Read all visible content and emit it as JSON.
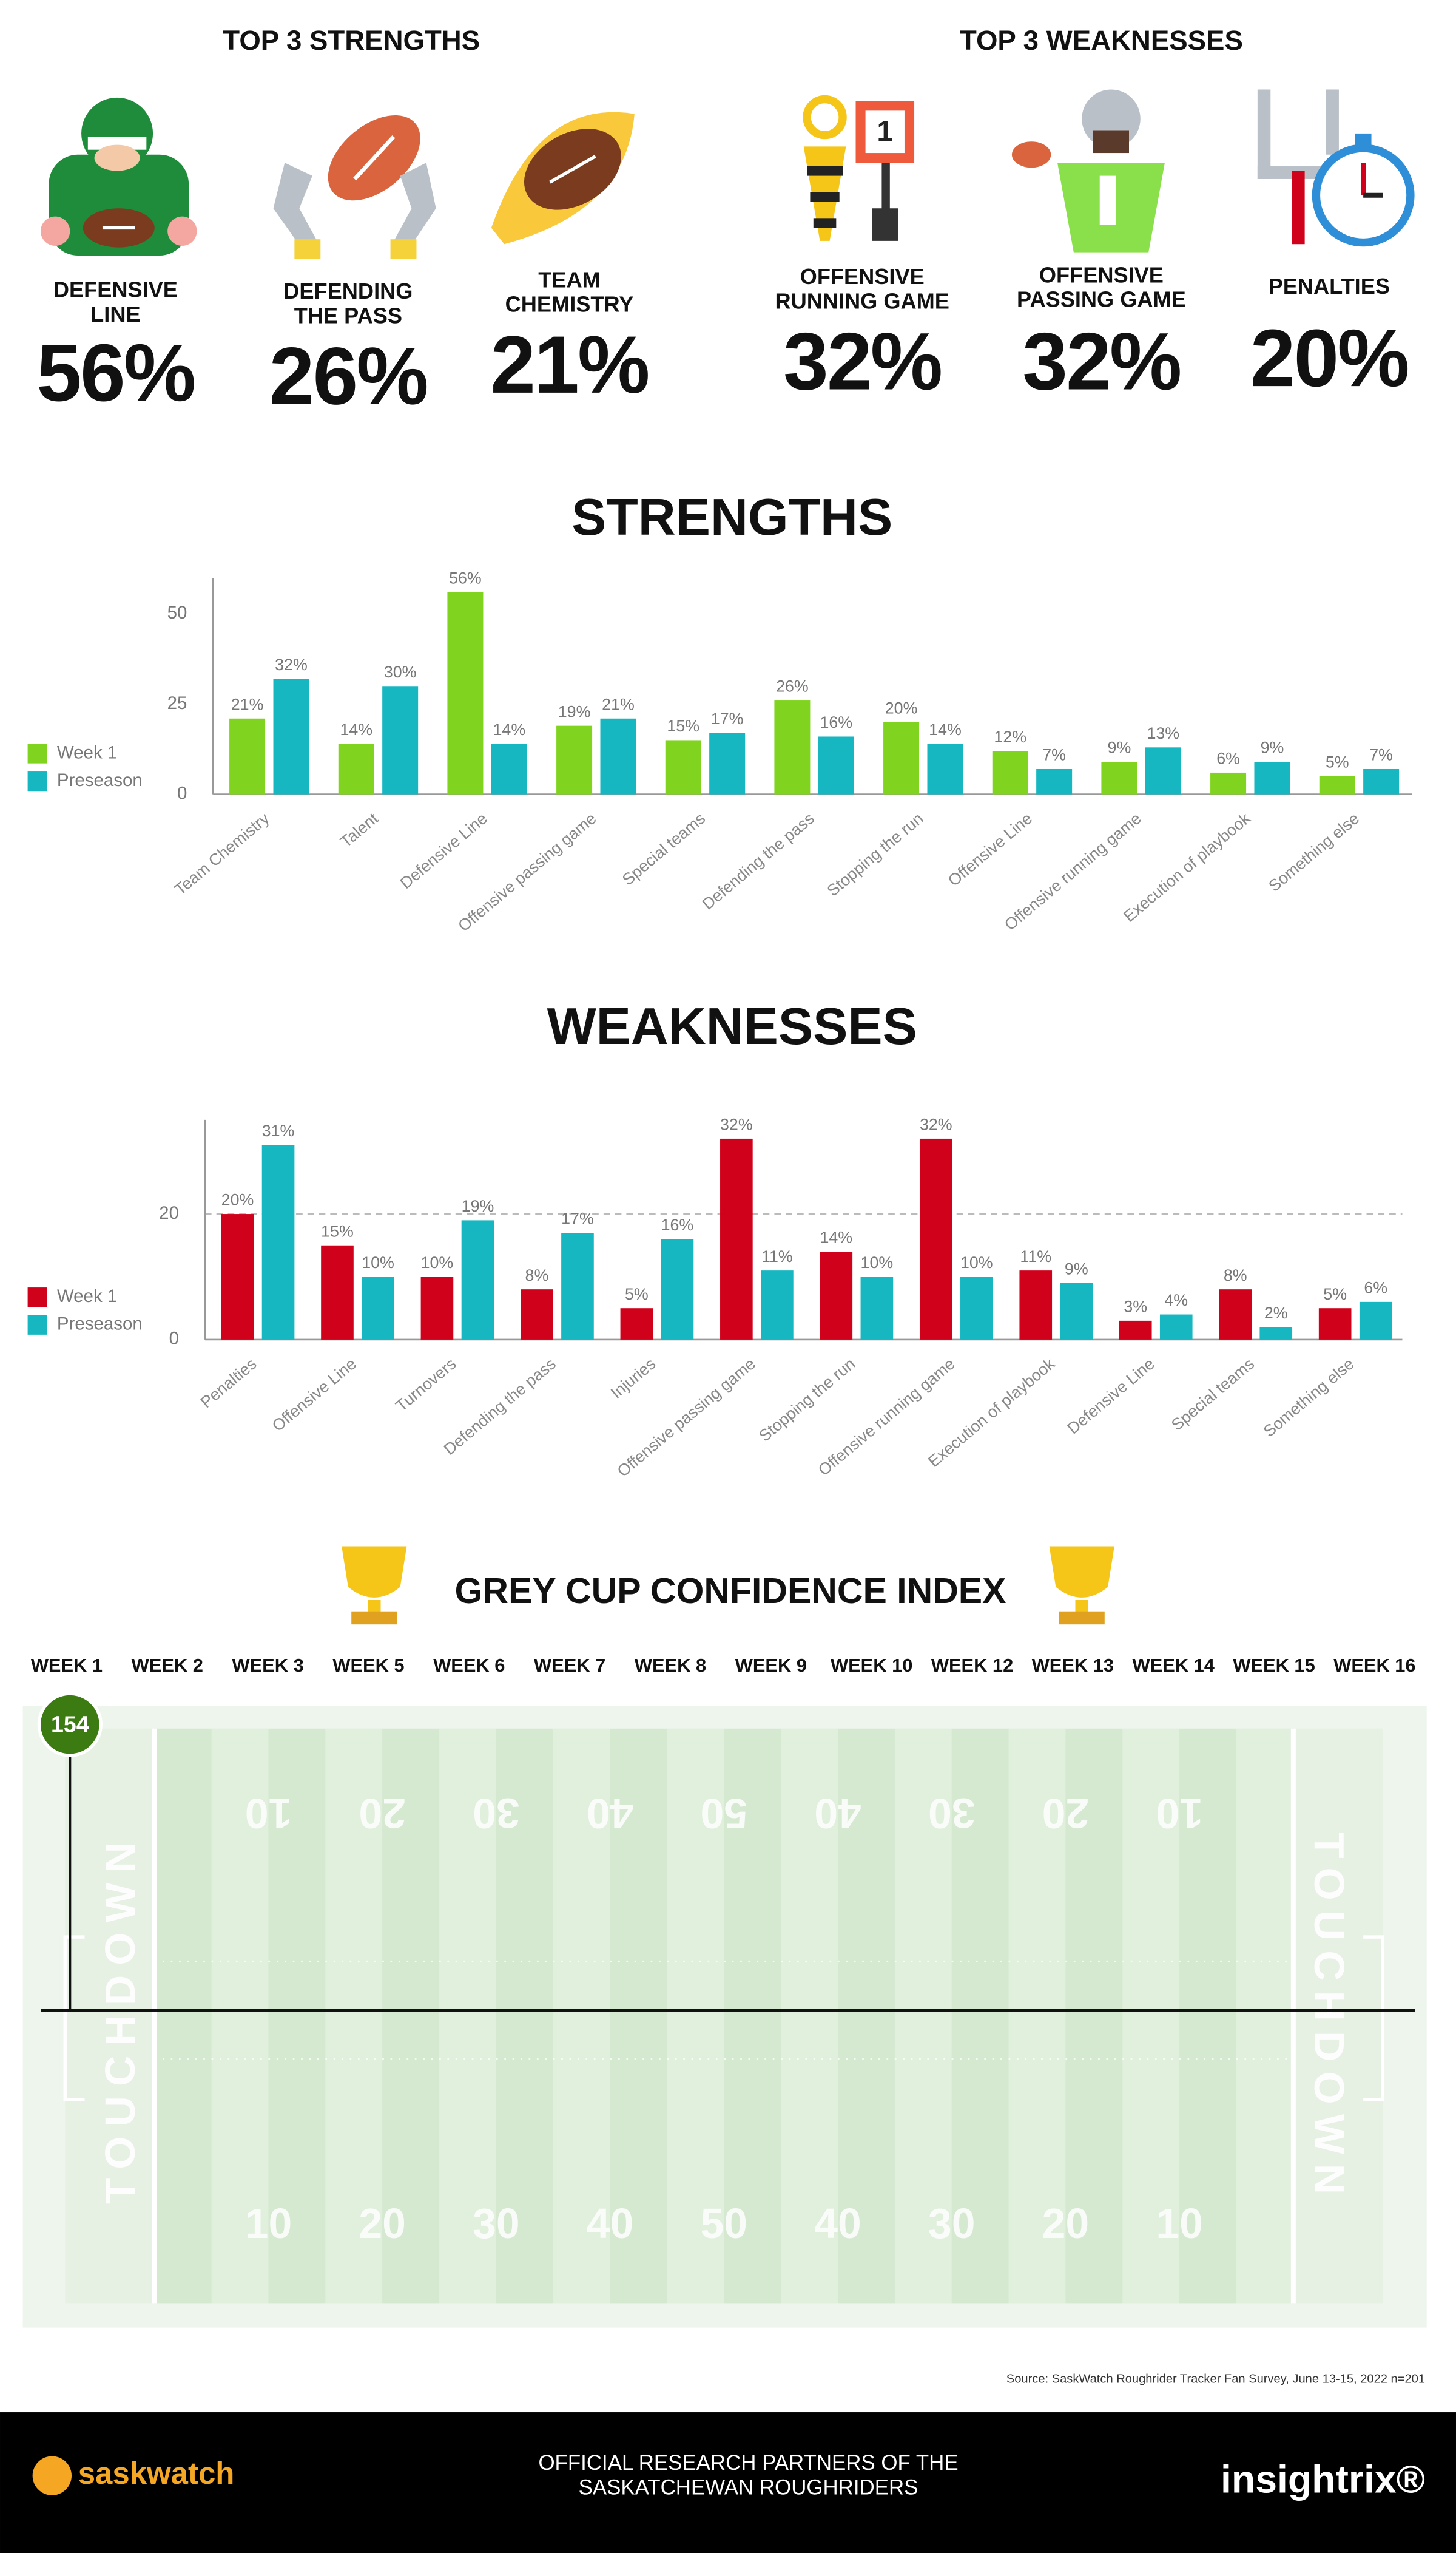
{
  "top_strengths": {
    "title": "TOP 3 STRENGTHS",
    "items": [
      {
        "label_lines": [
          "DEFENSIVE",
          "LINE"
        ],
        "value": "56%"
      },
      {
        "label_lines": [
          "DEFENDING",
          "THE PASS"
        ],
        "value": "26%"
      },
      {
        "label_lines": [
          "TEAM",
          "CHEMISTRY"
        ],
        "value": "21%"
      }
    ]
  },
  "top_weaknesses": {
    "title": "TOP 3 WEAKNESSES",
    "items": [
      {
        "label_lines": [
          "OFFENSIVE",
          "RUNNING GAME"
        ],
        "value": "32%"
      },
      {
        "label_lines": [
          "OFFENSIVE",
          "PASSING GAME"
        ],
        "value": "32%"
      },
      {
        "label_lines": [
          "PENALTIES"
        ],
        "value": "20%"
      }
    ],
    "down_marker": "1"
  },
  "chart_data": [
    {
      "type": "bar",
      "title": "STRENGTHS",
      "categories": [
        "Team Chemistry",
        "Talent",
        "Defensive Line",
        "Offensive passing game",
        "Special teams",
        "Defending the pass",
        "Stopping the run",
        "Offensive Line",
        "Offensive running game",
        "Execution of playbook",
        "Something else"
      ],
      "series": [
        {
          "name": "Week 1",
          "color": "#80d41f",
          "values": [
            21,
            14,
            56,
            19,
            15,
            26,
            20,
            12,
            9,
            6,
            5
          ],
          "value_labels": [
            "21%",
            "14%",
            "56%",
            "19%",
            "15%",
            "26%",
            "20%",
            "12%",
            "9%",
            "6%",
            "5%"
          ]
        },
        {
          "name": "Preseason",
          "color": "#17b7c1",
          "values": [
            32,
            30,
            14,
            21,
            17,
            16,
            14,
            7,
            13,
            9,
            7
          ],
          "value_labels": [
            "32%",
            "30%",
            "14%",
            "21%",
            "17%",
            "16%",
            "14%",
            "7%",
            "13%",
            "9%",
            "7%"
          ]
        }
      ],
      "ylim": [
        0,
        60
      ],
      "yticks": [
        0,
        25,
        50
      ],
      "grid": false,
      "legend": "left"
    },
    {
      "type": "bar",
      "title": "WEAKNESSES",
      "categories": [
        "Penalties",
        "Offensive Line",
        "Turnovers",
        "Defending the pass",
        "Injuries",
        "Offensive passing game",
        "Stopping the run",
        "Offensive running game",
        "Execution of playbook",
        "Defensive Line",
        "Special teams",
        "Something else"
      ],
      "series": [
        {
          "name": "Week 1",
          "color": "#d0021b",
          "values": [
            20,
            15,
            10,
            8,
            5,
            32,
            14,
            32,
            11,
            3,
            8,
            5
          ],
          "value_labels": [
            "20%",
            "15%",
            "10%",
            "8%",
            "5%",
            "32%",
            "14%",
            "32%",
            "11%",
            "3%",
            "8%",
            "5%"
          ]
        },
        {
          "name": "Preseason",
          "color": "#17b7c1",
          "values": [
            31,
            10,
            19,
            17,
            16,
            11,
            10,
            10,
            9,
            4,
            2,
            6
          ],
          "value_labels": [
            "31%",
            "10%",
            "19%",
            "17%",
            "16%",
            "11%",
            "10%",
            "10%",
            "9%",
            "4%",
            "2%",
            "6%"
          ]
        }
      ],
      "ylim": [
        0,
        35
      ],
      "yticks": [
        0,
        20
      ],
      "grid": true,
      "legend": "left"
    },
    {
      "type": "line",
      "title": "GREY CUP CONFIDENCE INDEX",
      "categories": [
        "WEEK 1",
        "WEEK 2",
        "WEEK 3",
        "WEEK 5",
        "WEEK 6",
        "WEEK 7",
        "WEEK 8",
        "WEEK 9",
        "WEEK 10",
        "WEEK 12",
        "WEEK 13",
        "WEEK 14",
        "WEEK 15",
        "WEEK 16"
      ],
      "values": [
        154,
        null,
        null,
        null,
        null,
        null,
        null,
        null,
        null,
        null,
        null,
        null,
        null,
        null
      ],
      "color": "#3c7a12",
      "ylim": [
        40,
        160
      ],
      "baseline": 100
    }
  ],
  "field": {
    "endzone": "TOUCHDOWN",
    "yard_numbers": [
      "10",
      "20",
      "30",
      "40",
      "50",
      "40",
      "30",
      "20",
      "10"
    ]
  },
  "source": "Source: SaskWatch Roughrider Tracker Fan Survey, June 13-15, 2022  n=201",
  "footer": {
    "left_logo": "saskwatch",
    "center_lines": [
      "OFFICIAL RESEARCH PARTNERS OF THE",
      "SASKATCHEWAN ROUGHRIDERS"
    ],
    "right_logo": "insightrix®"
  }
}
